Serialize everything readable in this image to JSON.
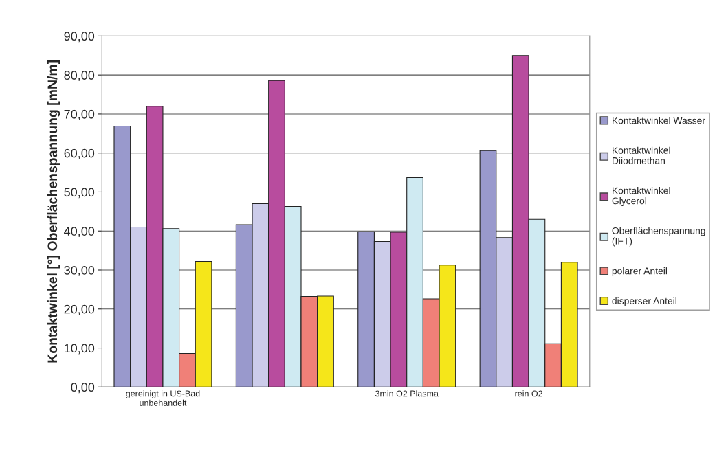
{
  "chart_data": {
    "type": "bar",
    "ylabel": "Kontaktwinkel [°] Oberflächenspannung [mN/m]",
    "categories": [
      "gereinigt in US-Bad\nunbehandelt",
      null,
      "3min O2 Plasma",
      "rein O2"
    ],
    "series": [
      {
        "name": "Kontaktwinkel Wasser",
        "color": "#9999cc",
        "values": [
          66.9,
          41.6,
          39.8,
          60.6
        ]
      },
      {
        "name": "Kontaktwinkel\nDiiodmethan",
        "color": "#ccccea",
        "values": [
          41.0,
          47.0,
          37.3,
          38.3
        ]
      },
      {
        "name": "Kontaktwinkel\nGlycerol",
        "color": "#b84c9e",
        "values": [
          72.0,
          78.6,
          39.7,
          85.0
        ]
      },
      {
        "name": "Oberflächenspannung\n(IFT)",
        "color": "#cfeaf2",
        "values": [
          40.6,
          46.3,
          53.7,
          43.0
        ]
      },
      {
        "name": "polarer Anteil",
        "color": "#f08078",
        "values": [
          8.6,
          23.2,
          22.6,
          11.1
        ]
      },
      {
        "name": "disperser Anteil",
        "color": "#f5e61a",
        "values": [
          32.2,
          23.3,
          31.3,
          32.0
        ]
      }
    ],
    "ylim": [
      0,
      90
    ],
    "yticks": [
      {
        "value": 0,
        "label": "0,00"
      },
      {
        "value": 10,
        "label": "10,00"
      },
      {
        "value": 20,
        "label": "20,00"
      },
      {
        "value": 30,
        "label": "30,00"
      },
      {
        "value": 40,
        "label": "40,00"
      },
      {
        "value": 50,
        "label": "50,00"
      },
      {
        "value": 60,
        "label": "60,00"
      },
      {
        "value": 70,
        "label": "70,00"
      },
      {
        "value": 80,
        "label": "80,00"
      },
      {
        "value": 90,
        "label": "90,00"
      }
    ],
    "grid": "y",
    "legend": "right"
  }
}
